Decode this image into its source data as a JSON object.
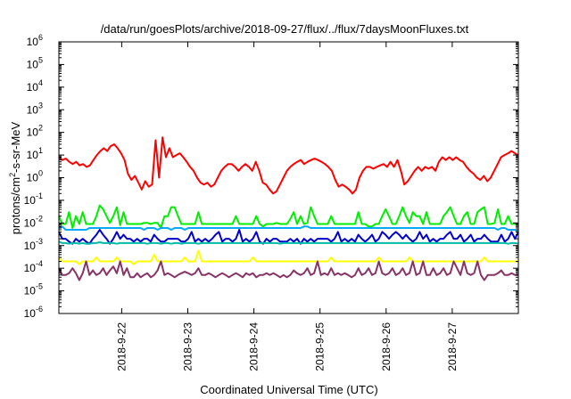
{
  "chart_data": {
    "type": "line",
    "title": "/data/run/goesPlots/archive/2018-09-27/flux/../flux/7daysMoonFluxes.txt",
    "xlabel": "Coordinated Universal Time (UTC)",
    "ylabel": {
      "base": "protons/cm",
      "sup": "2",
      "rest": "-s-sr-MeV"
    },
    "y_scale": "log",
    "ylim": [
      1e-06,
      1000000
    ],
    "y_ticks": [
      {
        "exp": "-6",
        "value": 1e-06
      },
      {
        "exp": "-5",
        "value": 1e-05
      },
      {
        "exp": "-4",
        "value": 0.0001
      },
      {
        "exp": "-3",
        "value": 0.001
      },
      {
        "exp": "-2",
        "value": 0.01
      },
      {
        "exp": "-1",
        "value": 0.1
      },
      {
        "exp": "0",
        "value": 1
      },
      {
        "exp": "1",
        "value": 10
      },
      {
        "exp": "2",
        "value": 100
      },
      {
        "exp": "3",
        "value": 1000
      },
      {
        "exp": "4",
        "value": 10000
      },
      {
        "exp": "5",
        "value": 100000
      },
      {
        "exp": "6",
        "value": 1000000
      }
    ],
    "y_tick_base": "10",
    "x_ticks": [
      "2018-9-22",
      "2018-9-23",
      "2018-9-24",
      "2018-9-25",
      "2018-9-26",
      "2018-9-27"
    ],
    "x_range_days": [
      -0.95,
      6.0
    ],
    "grid": false,
    "legend": "none",
    "series": [
      {
        "color": "#ff0000",
        "values": [
          8,
          6,
          7,
          5,
          4,
          5,
          3.5,
          4,
          3,
          3.5,
          6,
          10,
          15,
          20,
          15,
          25,
          30,
          20,
          12,
          6,
          1.5,
          0.8,
          1.2,
          0.6,
          0.3,
          0.7,
          0.4,
          0.5,
          45,
          1,
          60,
          8,
          20,
          8,
          10,
          12,
          8,
          5,
          3,
          2,
          1,
          0.6,
          0.5,
          0.6,
          0.4,
          0.5,
          1,
          2,
          3,
          4,
          4,
          3,
          2,
          3,
          4,
          3,
          2,
          5,
          2,
          0.6,
          0.5,
          0.3,
          0.2,
          0.25,
          0.5,
          1,
          2,
          3,
          4,
          5,
          6,
          4,
          5,
          6,
          7,
          6,
          5,
          4,
          3,
          2,
          0.8,
          0.4,
          0.5,
          0.4,
          0.3,
          0.2,
          0.3,
          1,
          2,
          3,
          3,
          2.5,
          3,
          3.5,
          4,
          3,
          5,
          3,
          6,
          2,
          0.5,
          0.7,
          1.2,
          2,
          3,
          2,
          3,
          2.5,
          3,
          2,
          5,
          8,
          6,
          8,
          6,
          8,
          6,
          5,
          3,
          2,
          1.5,
          1,
          0.8,
          1.2,
          0.7,
          1,
          2,
          4,
          8,
          10,
          12,
          15,
          12,
          10
        ]
      },
      {
        "color": "#00ee00",
        "values": [
          0.02,
          0.009,
          0.009,
          0.03,
          0.006,
          0.02,
          0.009,
          0.03,
          0.009,
          0.009,
          0.009,
          0.02,
          0.06,
          0.04,
          0.02,
          0.01,
          0.02,
          0.05,
          0.008,
          0.03,
          0.009,
          0.009,
          0.009,
          0.009,
          0.009,
          0.01,
          0.01,
          0.009,
          0.01,
          0.01,
          0.006,
          0.02,
          0.02,
          0.05,
          0.05,
          0.02,
          0.009,
          0.009,
          0.009,
          0.009,
          0.009,
          0.03,
          0.009,
          0.009,
          0.009,
          0.009,
          0.009,
          0.009,
          0.009,
          0.009,
          0.009,
          0.009,
          0.02,
          0.009,
          0.009,
          0.009,
          0.009,
          0.009,
          0.02,
          0.009,
          0.007,
          0.009,
          0.009,
          0.009,
          0.01,
          0.009,
          0.009,
          0.009,
          0.015,
          0.03,
          0.009,
          0.02,
          0.009,
          0.01,
          0.05,
          0.02,
          0.009,
          0.009,
          0.009,
          0.009,
          0.02,
          0.009,
          0.009,
          0.009,
          0.009,
          0.009,
          0.009,
          0.009,
          0.03,
          0.009,
          0.009,
          0.007,
          0.007,
          0.009,
          0.009,
          0.02,
          0.04,
          0.02,
          0.009,
          0.009,
          0.02,
          0.05,
          0.02,
          0.01,
          0.03,
          0.02,
          0.02,
          0.009,
          0.03,
          0.009,
          0.009,
          0.009,
          0.009,
          0.02,
          0.03,
          0.05,
          0.02,
          0.009,
          0.009,
          0.02,
          0.03,
          0.009,
          0.009,
          0.03,
          0.04,
          0.05,
          0.009,
          0.009,
          0.01,
          0.04,
          0.009,
          0.009,
          0.02,
          0.009,
          0.009,
          0.009
        ]
      },
      {
        "color": "#00aaff",
        "values": [
          0.006,
          0.007,
          0.005,
          0.005,
          0.005,
          0.005,
          0.005,
          0.005,
          0.005,
          0.006,
          0.006,
          0.006,
          0.006,
          0.006,
          0.006,
          0.006,
          0.006,
          0.006,
          0.006,
          0.006,
          0.006,
          0.006,
          0.006,
          0.006,
          0.006,
          0.005,
          0.006,
          0.006,
          0.006,
          0.005,
          0.006,
          0.006,
          0.006,
          0.005,
          0.006,
          0.006,
          0.006,
          0.005,
          0.006,
          0.006,
          0.006,
          0.006,
          0.006,
          0.006,
          0.006,
          0.006,
          0.006,
          0.006,
          0.006,
          0.006,
          0.006,
          0.006,
          0.006,
          0.006,
          0.006,
          0.006,
          0.006,
          0.006,
          0.006,
          0.006,
          0.006,
          0.006,
          0.006,
          0.006,
          0.006,
          0.006,
          0.006,
          0.006,
          0.006,
          0.006,
          0.006,
          0.006,
          0.007,
          0.007,
          0.006,
          0.006,
          0.006,
          0.006,
          0.006,
          0.006,
          0.006,
          0.006,
          0.006,
          0.006,
          0.006,
          0.006,
          0.006,
          0.006,
          0.006,
          0.006,
          0.006,
          0.006,
          0.006,
          0.006,
          0.006,
          0.006,
          0.006,
          0.006,
          0.006,
          0.006,
          0.006,
          0.006,
          0.006,
          0.006,
          0.006,
          0.006,
          0.006,
          0.006,
          0.006,
          0.006,
          0.006,
          0.006,
          0.006,
          0.006,
          0.006,
          0.006,
          0.006,
          0.006,
          0.006,
          0.006,
          0.006,
          0.006,
          0.006,
          0.006,
          0.006,
          0.006,
          0.006,
          0.006,
          0.006,
          0.005,
          0.006,
          0.006,
          0.005,
          0.005,
          0.005,
          0.004
        ]
      },
      {
        "color": "#0000cc",
        "values": [
          0.004,
          0.002,
          0.002,
          0.0015,
          0.0012,
          0.002,
          0.0015,
          0.002,
          0.0015,
          0.0012,
          0.002,
          0.003,
          0.005,
          0.003,
          0.002,
          0.0012,
          0.002,
          0.004,
          0.002,
          0.003,
          0.002,
          0.002,
          0.0015,
          0.002,
          0.0015,
          0.002,
          0.002,
          0.0015,
          0.003,
          0.002,
          0.0015,
          0.0015,
          0.002,
          0.002,
          0.002,
          0.002,
          0.0015,
          0.0015,
          0.002,
          0.004,
          0.0015,
          0.002,
          0.0015,
          0.002,
          0.0015,
          0.002,
          0.003,
          0.004,
          0.0015,
          0.002,
          0.002,
          0.0015,
          0.002,
          0.005,
          0.0015,
          0.002,
          0.0015,
          0.002,
          0.004,
          0.0015,
          0.0012,
          0.002,
          0.0015,
          0.002,
          0.002,
          0.0015,
          0.0015,
          0.0015,
          0.002,
          0.0015,
          0.002,
          0.0012,
          0.002,
          0.0015,
          0.002,
          0.0015,
          0.002,
          0.002,
          0.002,
          0.002,
          0.0015,
          0.002,
          0.004,
          0.0015,
          0.002,
          0.0015,
          0.002,
          0.0015,
          0.003,
          0.002,
          0.0015,
          0.002,
          0.003,
          0.0015,
          0.002,
          0.004,
          0.003,
          0.002,
          0.003,
          0.004,
          0.003,
          0.002,
          0.003,
          0.002,
          0.0015,
          0.002,
          0.004,
          0.002,
          0.003,
          0.0015,
          0.002,
          0.0015,
          0.002,
          0.002,
          0.003,
          0.004,
          0.002,
          0.002,
          0.003,
          0.0015,
          0.002,
          0.003,
          0.0015,
          0.002,
          0.002,
          0.003,
          0.002,
          0.0015,
          0.0015,
          0.0015,
          0.003,
          0.0015,
          0.002,
          0.004,
          0.002,
          0.004
        ]
      },
      {
        "color": "#00bbaa",
        "values": [
          0.0015,
          0.0013,
          0.0013,
          0.0012,
          0.0013,
          0.0013,
          0.0012,
          0.0013,
          0.0012,
          0.0012,
          0.0013,
          0.0013,
          0.0014,
          0.0013,
          0.0013,
          0.0013,
          0.0013,
          0.0012,
          0.0013,
          0.0013,
          0.0013,
          0.0013,
          0.0013,
          0.0013,
          0.0013,
          0.0013,
          0.0012,
          0.0013,
          0.0013,
          0.0013,
          0.0012,
          0.0013,
          0.0013,
          0.0012,
          0.0013,
          0.0013,
          0.0012,
          0.0013,
          0.0013,
          0.0013,
          0.0013,
          0.0012,
          0.0013,
          0.0013,
          0.0013,
          0.0013,
          0.0013,
          0.0013,
          0.0013,
          0.0013,
          0.0013,
          0.0013,
          0.0013,
          0.0013,
          0.0013,
          0.0013,
          0.0013,
          0.0013,
          0.0013,
          0.0013,
          0.0013,
          0.0013,
          0.0013,
          0.0013,
          0.0013,
          0.0012,
          0.0013,
          0.0013,
          0.0013,
          0.0013,
          0.0013,
          0.0013,
          0.0013,
          0.0013,
          0.0013,
          0.0013,
          0.0013,
          0.0013,
          0.0013,
          0.0013,
          0.0013,
          0.0013,
          0.0013,
          0.0013,
          0.0013,
          0.0013,
          0.0013,
          0.0013,
          0.0013,
          0.0013,
          0.0013,
          0.0013,
          0.0013,
          0.0013,
          0.0013,
          0.0013,
          0.0013,
          0.0013,
          0.0013,
          0.0013,
          0.0013,
          0.0013,
          0.0013,
          0.0013,
          0.0013,
          0.0013,
          0.0013,
          0.0013,
          0.0013,
          0.0013,
          0.0013,
          0.0013,
          0.0013,
          0.0013,
          0.0013,
          0.0013,
          0.0013,
          0.0013,
          0.0013,
          0.0013,
          0.0013,
          0.0013,
          0.0013,
          0.0013,
          0.0013,
          0.0013,
          0.0013,
          0.0013,
          0.0013,
          0.0013,
          0.0013,
          0.0013,
          0.0012,
          0.0013,
          0.0013,
          0.0012
        ]
      },
      {
        "color": "#ffff00",
        "values": [
          0.0003,
          0.0002,
          0.0002,
          0.0002,
          0.0002,
          0.0002,
          0.00015,
          0.0002,
          0.0002,
          0.0002,
          0.0002,
          0.0003,
          0.0002,
          0.0002,
          0.0002,
          0.0002,
          0.0002,
          0.0003,
          0.0002,
          0.0002,
          0.0002,
          0.0002,
          0.00015,
          0.0002,
          0.0002,
          0.0002,
          0.0002,
          0.0002,
          0.0004,
          0.0002,
          0.0002,
          0.0002,
          0.0002,
          0.0002,
          0.0002,
          0.0002,
          0.0002,
          0.0003,
          0.0002,
          0.0002,
          0.0002,
          0.0006,
          0.0002,
          0.0002,
          0.0002,
          0.0002,
          0.0002,
          0.0002,
          0.0002,
          0.0002,
          0.0002,
          0.0002,
          0.0002,
          0.0002,
          0.0002,
          0.0002,
          0.0002,
          0.0003,
          0.0002,
          0.0002,
          0.0002,
          0.0002,
          0.0002,
          0.0002,
          0.0002,
          0.0002,
          0.0002,
          0.0002,
          0.0002,
          0.0002,
          0.0002,
          0.0002,
          0.0002,
          0.0002,
          0.0002,
          0.0002,
          0.0002,
          0.0002,
          0.0002,
          0.0002,
          0.0003,
          0.0002,
          0.0002,
          0.0002,
          0.0002,
          0.0002,
          0.0002,
          0.0002,
          0.0002,
          0.0002,
          0.0002,
          0.0002,
          0.0002,
          0.0002,
          0.0003,
          0.0002,
          0.0002,
          0.0002,
          0.0002,
          0.0002,
          0.0002,
          0.0002,
          0.0002,
          0.0003,
          0.0002,
          0.0002,
          0.0002,
          0.0002,
          0.0002,
          0.0002,
          0.0002,
          0.0002,
          0.0002,
          0.0002,
          0.0002,
          0.0002,
          0.0002,
          0.0002,
          0.0002,
          0.0002,
          0.0002,
          0.0002,
          0.0002,
          0.0002,
          0.0002,
          0.0003,
          0.0002,
          0.0002,
          0.0002,
          0.0002,
          0.0002,
          0.0002,
          0.0002,
          0.0002,
          0.0002,
          0.0002
        ]
      },
      {
        "color": "#883366",
        "values": [
          0.0001,
          5e-05,
          5e-05,
          6e-05,
          0.0001,
          6e-05,
          3e-05,
          6e-05,
          0.0002,
          5e-05,
          8e-05,
          5e-05,
          6e-05,
          0.0001,
          5e-05,
          8e-05,
          0.00012,
          6e-05,
          0.0002,
          5e-05,
          0.0001,
          4e-05,
          4e-05,
          6e-05,
          4e-05,
          5e-05,
          6e-05,
          4e-05,
          5e-05,
          8e-05,
          0.0002,
          5e-05,
          6e-05,
          5e-05,
          4e-05,
          5e-05,
          6e-05,
          7e-05,
          6e-05,
          5e-05,
          6e-05,
          0.0001,
          5e-05,
          5e-05,
          6e-05,
          5e-05,
          4e-05,
          5e-05,
          6e-05,
          5e-05,
          4e-05,
          5e-05,
          6e-05,
          5e-05,
          4e-05,
          6e-05,
          5e-05,
          6e-05,
          4e-05,
          5e-05,
          5e-05,
          6e-05,
          5e-05,
          6e-05,
          5e-05,
          4e-05,
          5e-05,
          4e-05,
          5e-05,
          8e-05,
          6e-05,
          5e-05,
          6e-05,
          0.0001,
          5e-05,
          6e-05,
          0.0002,
          5e-05,
          6e-05,
          5e-05,
          0.0001,
          5e-05,
          6e-05,
          5e-05,
          6e-05,
          5e-05,
          4e-05,
          5e-05,
          0.0001,
          5e-05,
          6e-05,
          0.0001,
          5e-05,
          6e-05,
          0.0002,
          6e-05,
          5e-05,
          6e-05,
          0.0001,
          5e-05,
          6e-05,
          0.0001,
          5e-05,
          6e-05,
          0.0002,
          5e-05,
          6e-05,
          0.0002,
          5e-05,
          5e-05,
          0.0001,
          5e-05,
          6e-05,
          0.0001,
          5e-05,
          6e-05,
          0.0002,
          0.0001,
          5e-05,
          0.0002,
          6e-05,
          5e-05,
          6e-05,
          0.0002,
          5e-05,
          3e-05,
          5e-05,
          5e-05,
          5e-05,
          6e-05,
          8e-05,
          5e-05,
          5e-05,
          6e-05,
          5e-05,
          5e-05
        ]
      }
    ]
  }
}
